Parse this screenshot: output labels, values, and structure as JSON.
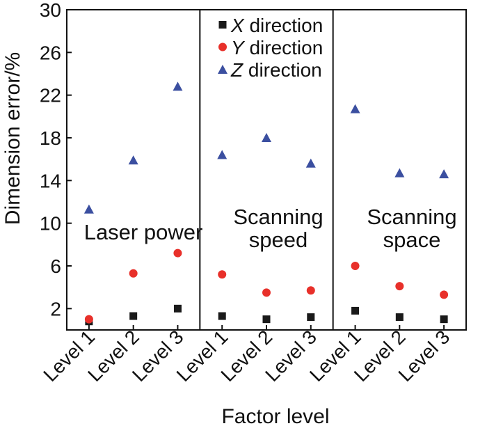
{
  "chart_data": {
    "type": "scatter",
    "title": "",
    "xlabel": "Factor level",
    "ylabel": "Dimension error/%",
    "ylim": [
      0,
      30
    ],
    "yticks": [
      2,
      6,
      10,
      14,
      18,
      22,
      26,
      30
    ],
    "grid": false,
    "legend_position": "top-center",
    "categories": [
      "Level 1",
      "Level 2",
      "Level 3",
      "Level 1",
      "Level 2",
      "Level 3",
      "Level 1",
      "Level 2",
      "Level 3"
    ],
    "groups": [
      {
        "name_lines": [
          "Laser power"
        ]
      },
      {
        "name_lines": [
          "Scanning",
          "speed"
        ]
      },
      {
        "name_lines": [
          "Scanning",
          "space"
        ]
      }
    ],
    "series": [
      {
        "name": "X direction",
        "name_italic": "X",
        "name_rest": " direction",
        "marker": "square",
        "color": "#1a1a1a",
        "values": [
          0.8,
          1.3,
          2.0,
          1.3,
          1.0,
          1.2,
          1.8,
          1.2,
          1.0
        ]
      },
      {
        "name": "Y direction",
        "name_italic": "Y",
        "name_rest": " direction",
        "marker": "circle",
        "color": "#e8302a",
        "values": [
          1.0,
          5.3,
          7.2,
          5.2,
          3.5,
          3.7,
          6.0,
          4.1,
          3.3
        ]
      },
      {
        "name": "Z direction",
        "name_italic": "Z",
        "name_rest": " direction",
        "marker": "triangle",
        "color": "#3b4fa0",
        "values": [
          11.3,
          15.9,
          22.8,
          16.4,
          18.0,
          15.6,
          20.7,
          14.7,
          14.6
        ]
      }
    ]
  }
}
